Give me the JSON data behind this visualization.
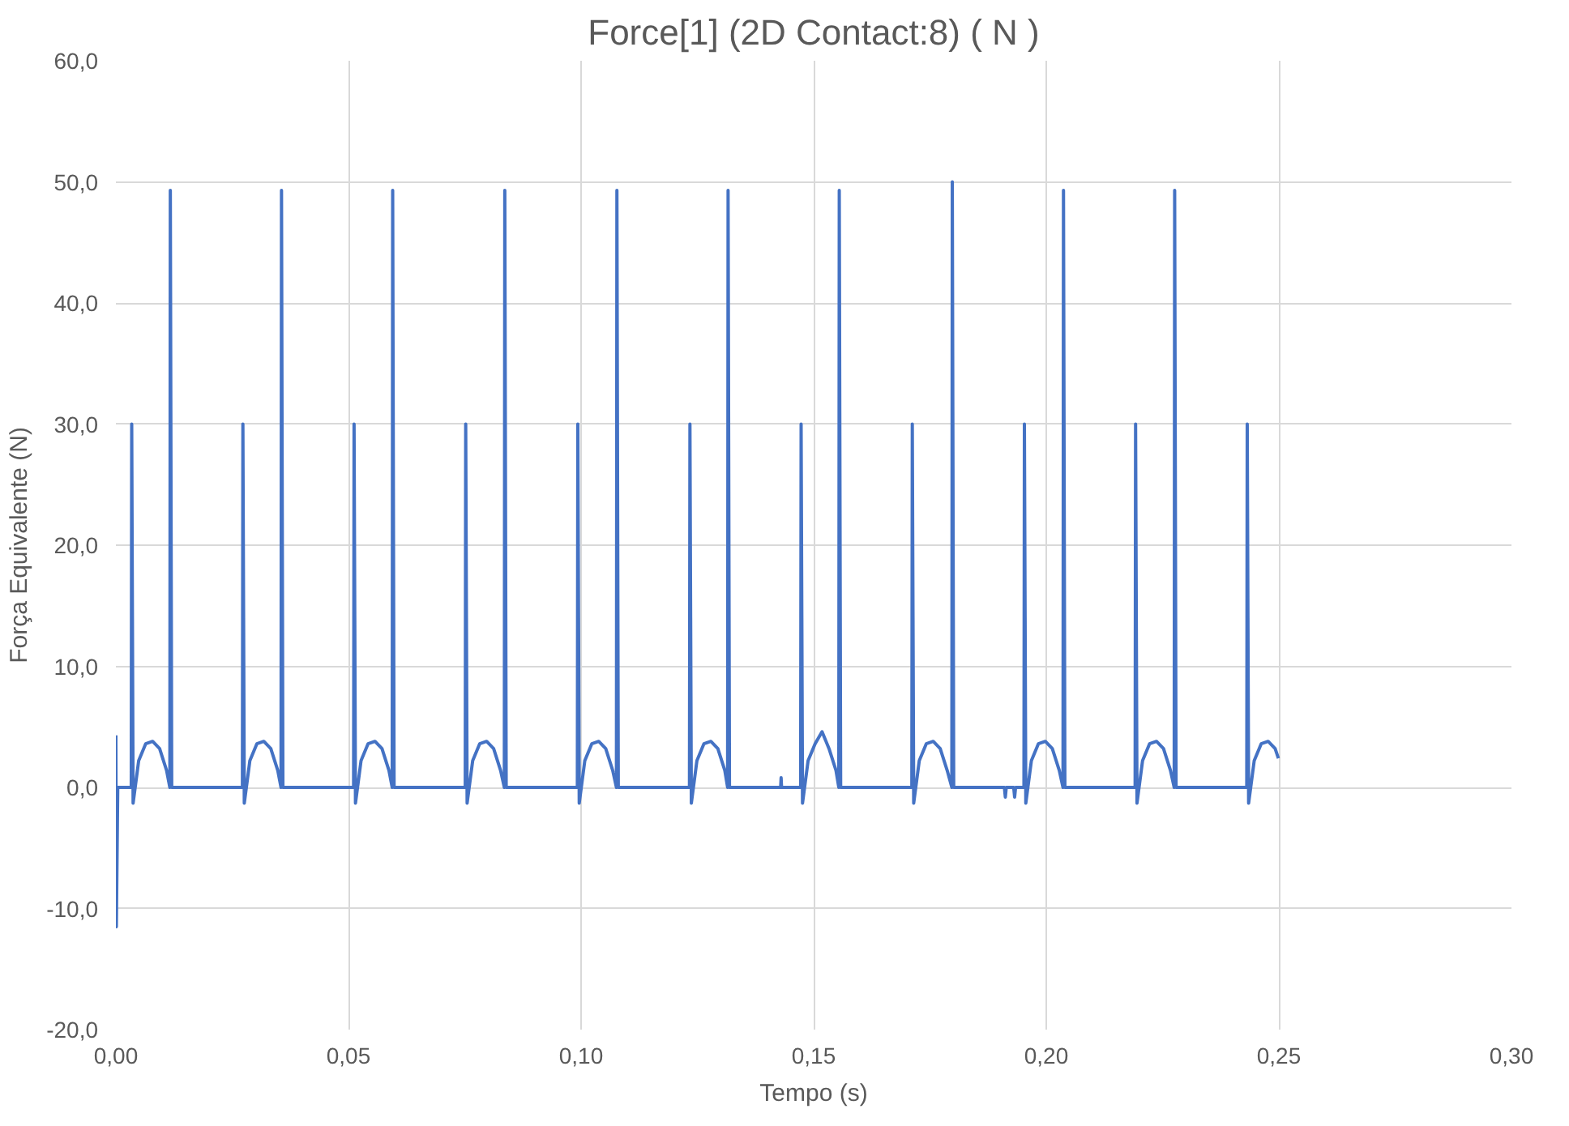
{
  "chart_data": {
    "type": "line",
    "title": "Force[1] (2D Contact:8) ( N )",
    "xlabel": "Tempo (s)",
    "ylabel": "Força Equivalente (N)",
    "xlim": [
      0,
      0.3
    ],
    "ylim": [
      -20,
      60
    ],
    "xticks": [
      {
        "value": 0,
        "label": "0,00"
      },
      {
        "value": 0.05,
        "label": "0,05"
      },
      {
        "value": 0.1,
        "label": "0,10"
      },
      {
        "value": 0.15,
        "label": "0,15"
      },
      {
        "value": 0.2,
        "label": "0,20"
      },
      {
        "value": 0.25,
        "label": "0,25"
      },
      {
        "value": 0.3,
        "label": "0,30"
      }
    ],
    "yticks": [
      {
        "value": -20,
        "label": "-20,0"
      },
      {
        "value": -10,
        "label": "-10,0"
      },
      {
        "value": 0,
        "label": "0,0"
      },
      {
        "value": 10,
        "label": "10,0"
      },
      {
        "value": 20,
        "label": "20,0"
      },
      {
        "value": 30,
        "label": "30,0"
      },
      {
        "value": 40,
        "label": "40,0"
      },
      {
        "value": 50,
        "label": "50,0"
      },
      {
        "value": 60,
        "label": "60,0"
      }
    ],
    "grid": true,
    "series": [
      {
        "color": "#4472c4",
        "x": [
          0,
          0.0001,
          0.0004,
          0.0033,
          0.0034,
          0.0037,
          0.0049,
          0.0064,
          0.0079,
          0.0094,
          0.0109,
          0.0116,
          0.0117,
          0.012,
          0.0272,
          0.0273,
          0.0276,
          0.0288,
          0.0303,
          0.0318,
          0.0333,
          0.0348,
          0.0355,
          0.0356,
          0.0359,
          0.0511,
          0.0512,
          0.0515,
          0.0527,
          0.0542,
          0.0557,
          0.0572,
          0.0587,
          0.0594,
          0.0595,
          0.0598,
          0.0751,
          0.0752,
          0.0755,
          0.0767,
          0.0782,
          0.0797,
          0.0812,
          0.0827,
          0.0835,
          0.0836,
          0.0839,
          0.0992,
          0.0993,
          0.0996,
          0.1008,
          0.1023,
          0.1038,
          0.1053,
          0.1068,
          0.1076,
          0.1077,
          0.108,
          0.1233,
          0.1234,
          0.1237,
          0.1249,
          0.1264,
          0.1279,
          0.1294,
          0.1309,
          0.1315,
          0.1316,
          0.1319,
          0.1429,
          0.143,
          0.1431,
          0.1472,
          0.1473,
          0.1476,
          0.1488,
          0.1503,
          0.1518,
          0.1533,
          0.1548,
          0.1554,
          0.1555,
          0.1558,
          0.1711,
          0.1712,
          0.1715,
          0.1727,
          0.1742,
          0.1757,
          0.1772,
          0.1787,
          0.1797,
          0.1798,
          0.1801,
          0.191,
          0.1912,
          0.1914,
          0.193,
          0.1932,
          0.1934,
          0.1952,
          0.1953,
          0.1956,
          0.1968,
          0.1983,
          0.1998,
          0.2013,
          0.2028,
          0.2036,
          0.2037,
          0.204,
          0.2191,
          0.2192,
          0.2195,
          0.2207,
          0.2222,
          0.2237,
          0.2252,
          0.2267,
          0.2275,
          0.2276,
          0.2279,
          0.2431,
          0.2432,
          0.2435,
          0.2447,
          0.2462,
          0.2477,
          0.2492,
          0.2499
        ],
        "values": [
          4.3,
          -11.5,
          0,
          0,
          30,
          -1.3,
          2.2,
          3.6,
          3.8,
          3.2,
          1.4,
          0,
          49.3,
          0,
          0,
          30,
          -1.3,
          2.2,
          3.6,
          3.8,
          3.2,
          1.4,
          0,
          49.3,
          0,
          0,
          30,
          -1.3,
          2.2,
          3.6,
          3.8,
          3.2,
          1.4,
          0,
          49.3,
          0,
          0,
          30,
          -1.3,
          2.2,
          3.6,
          3.8,
          3.2,
          1.4,
          0,
          49.3,
          0,
          0,
          30,
          -1.3,
          2.2,
          3.6,
          3.8,
          3.2,
          1.4,
          0,
          49.3,
          0,
          0,
          30,
          -1.3,
          2.2,
          3.6,
          3.8,
          3.2,
          1.4,
          0,
          49.3,
          0,
          0,
          0.8,
          0,
          0,
          30,
          -1.3,
          2.2,
          3.6,
          4.6,
          3.2,
          1.4,
          0,
          49.3,
          0,
          0,
          30,
          -1.3,
          2.2,
          3.6,
          3.8,
          3.2,
          1.4,
          0,
          50.0,
          0,
          0,
          -0.8,
          0,
          0,
          -0.8,
          0,
          0,
          30,
          -1.3,
          2.2,
          3.6,
          3.8,
          3.2,
          1.4,
          0,
          49.3,
          0,
          0,
          30,
          -1.3,
          2.2,
          3.6,
          3.8,
          3.2,
          1.4,
          0,
          49.3,
          0,
          0,
          30,
          -1.3,
          2.2,
          3.6,
          3.8,
          3.2,
          2.4
        ]
      }
    ]
  }
}
